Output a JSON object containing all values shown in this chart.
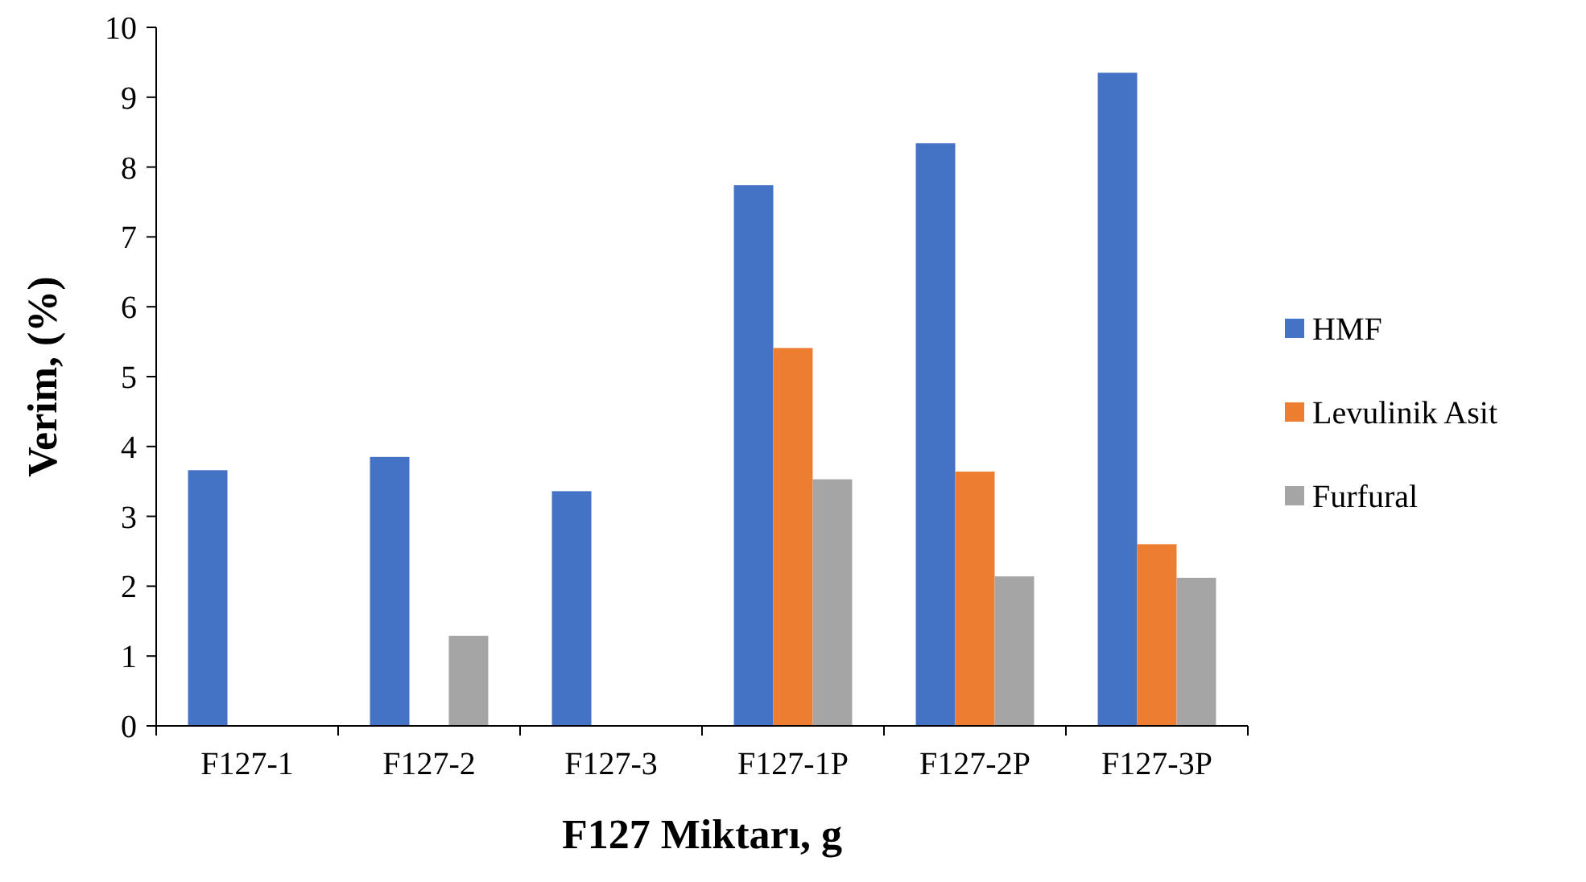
{
  "chart_data": {
    "type": "bar",
    "xlabel": "F127 Miktarı, g",
    "ylabel": "Verim, (%)",
    "categories": [
      "F127-1",
      "F127-2",
      "F127-3",
      "F127-1P",
      "F127-2P",
      "F127-3P"
    ],
    "series": [
      {
        "name": "HMF",
        "color": "#4472c4",
        "values": [
          3.66,
          3.85,
          3.36,
          7.74,
          8.34,
          9.35
        ]
      },
      {
        "name": "Levulinik Asit",
        "color": "#ed7d31",
        "values": [
          0,
          0,
          0,
          5.41,
          3.64,
          2.6
        ]
      },
      {
        "name": "Furfural",
        "color": "#a5a5a5",
        "values": [
          0,
          1.29,
          0,
          3.53,
          2.14,
          2.12
        ]
      }
    ],
    "ylim": [
      0,
      10
    ],
    "yticks": [
      0,
      1,
      2,
      3,
      4,
      5,
      6,
      7,
      8,
      9,
      10
    ],
    "grid": false,
    "legend": "right"
  }
}
